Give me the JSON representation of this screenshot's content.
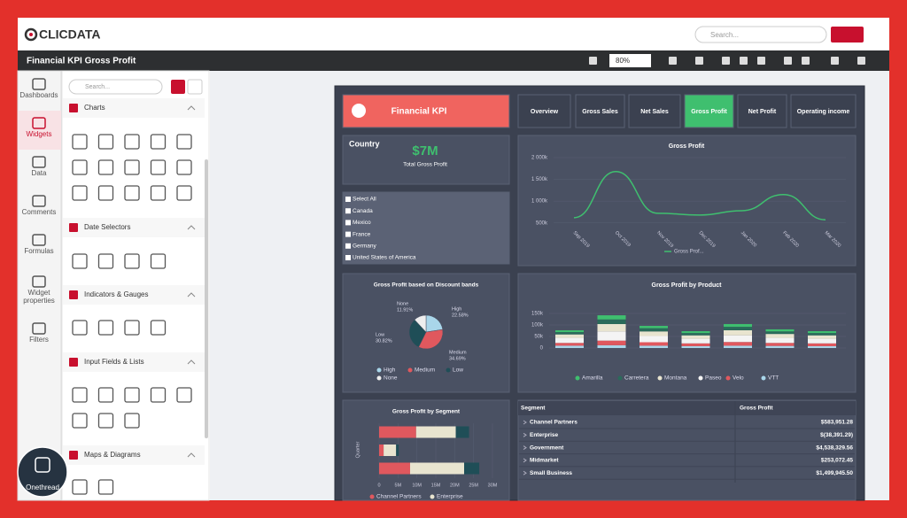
{
  "header": {
    "logo": "CLICDATA",
    "search_placeholder": "Search...",
    "title": "Financial KPI Gross Profit",
    "zoom": "80%"
  },
  "sidebar": [
    "Dashboards",
    "Widgets",
    "Data",
    "Comments",
    "Formulas",
    "Widget properties",
    "Filters"
  ],
  "panel": {
    "search_placeholder": "Search...",
    "sections": [
      "Charts",
      "Date Selectors",
      "Indicators & Gauges",
      "Input Fields & Lists",
      "Maps & Diagrams"
    ]
  },
  "dashboard": {
    "title": "Financial KPI",
    "tabs": [
      "Overview",
      "Gross Sales",
      "Net Sales",
      "Gross Profit",
      "Net Profit",
      "Operating income"
    ],
    "kpi": {
      "label": "Country",
      "value": "$7M",
      "caption": "Total Gross Profit"
    },
    "filter": [
      "Select All",
      "Canada",
      "Mexico",
      "France",
      "Germany",
      "United States of America"
    ],
    "line_chart": {
      "type": "line",
      "title": "Gross Profit",
      "categories": [
        "Sep 2019",
        "Oct 2019",
        "Nov 2019",
        "Dec 2019",
        "Jan 2020",
        "Feb 2020",
        "Mar 2020"
      ],
      "series": [
        {
          "name": "Gross Prof...",
          "color": "#3fbf6f",
          "values": [
            620000,
            1680000,
            720000,
            680000,
            780000,
            1150000,
            570000
          ]
        }
      ],
      "ylim": [
        250000,
        2000000
      ],
      "yticks": [
        {
          "value": 500000,
          "label": "500k"
        },
        {
          "value": 1000000,
          "label": "1 000k"
        },
        {
          "value": 1500000,
          "label": "1 500k"
        },
        {
          "value": 2000000,
          "label": "2 000k"
        }
      ]
    },
    "pie_chart": {
      "type": "pie",
      "title": "Gross Profit based on Discount bands",
      "categories": [
        "High",
        "Medium",
        "Low",
        "None"
      ],
      "values": [
        22.58,
        34.69,
        30.82,
        11.91
      ],
      "value_labels": [
        "22.58%",
        "34.69%",
        "30.82%",
        "11.91%"
      ],
      "colors": [
        "#a9d6ea",
        "#e0585e",
        "#1f4e57",
        "#eeeeee"
      ]
    },
    "bar_chart": {
      "type": "bar",
      "title": "Gross Profit by Product",
      "categories": [
        null,
        null,
        null,
        null,
        null,
        null,
        null
      ],
      "series": [
        {
          "name": "Amarilla",
          "color": "#3fbf6f",
          "values": [
            8000,
            18000,
            10000,
            8000,
            12000,
            9000,
            8000
          ]
        },
        {
          "name": "Carretera",
          "color": "#2a6b5a",
          "values": [
            10000,
            20000,
            14000,
            10000,
            15000,
            11000,
            10000
          ]
        },
        {
          "name": "Montana",
          "color": "#e8e4cf",
          "values": [
            15000,
            32000,
            20000,
            15000,
            22000,
            17000,
            15000
          ]
        },
        {
          "name": "Paseo",
          "color": "#f4f4f4",
          "values": [
            22000,
            40000,
            27000,
            20000,
            29000,
            22000,
            20000
          ]
        },
        {
          "name": "Velo",
          "color": "#e0585e",
          "values": [
            12000,
            20000,
            15000,
            12000,
            16000,
            13000,
            12000
          ]
        },
        {
          "name": "VTT",
          "color": "#a9d6ea",
          "values": [
            10000,
            12000,
            10000,
            8000,
            10000,
            9000,
            8000
          ]
        }
      ],
      "ylim": [
        0,
        150000
      ],
      "yticks": [
        0,
        {
          "value": 50000,
          "label": "50k"
        },
        {
          "value": 100000,
          "label": "100k"
        },
        {
          "value": 150000,
          "label": "150k"
        }
      ]
    },
    "segment_chart": {
      "type": "bar",
      "title": "Gross Profit by Segment",
      "y_label": "Quarter",
      "series": [
        {
          "name": "Channel Partners",
          "color": "#e0585e",
          "values": [
            9800000,
            1200000,
            8200000
          ]
        },
        {
          "name": "Enterprise",
          "color": "#e8e4cf",
          "values": [
            10500000,
            3300000,
            14300000
          ]
        },
        {
          "name": null,
          "color": "#1f4e57",
          "values": [
            3500000,
            700000,
            4000000
          ]
        }
      ],
      "xlim": [
        0,
        30000000
      ],
      "xticks": [
        0,
        {
          "value": 5000000,
          "label": "5M"
        },
        {
          "value": 10000000,
          "label": "10M"
        },
        {
          "value": 15000000,
          "label": "15M"
        },
        {
          "value": 20000000,
          "label": "20M"
        },
        {
          "value": 25000000,
          "label": "25M"
        },
        {
          "value": 30000000,
          "label": "30M"
        }
      ]
    },
    "table": {
      "columns": [
        "Segment",
        "Gross Profit"
      ],
      "rows": [
        [
          "Channel Partners",
          "$583,951.28"
        ],
        [
          "Enterprise",
          "$(38,391.29)"
        ],
        [
          "Government",
          "$4,538,329.56"
        ],
        [
          "Midmarket",
          "$253,072.45"
        ],
        [
          "Small Business",
          "$1,499,945.50"
        ]
      ]
    }
  },
  "watermark": "Onethread"
}
